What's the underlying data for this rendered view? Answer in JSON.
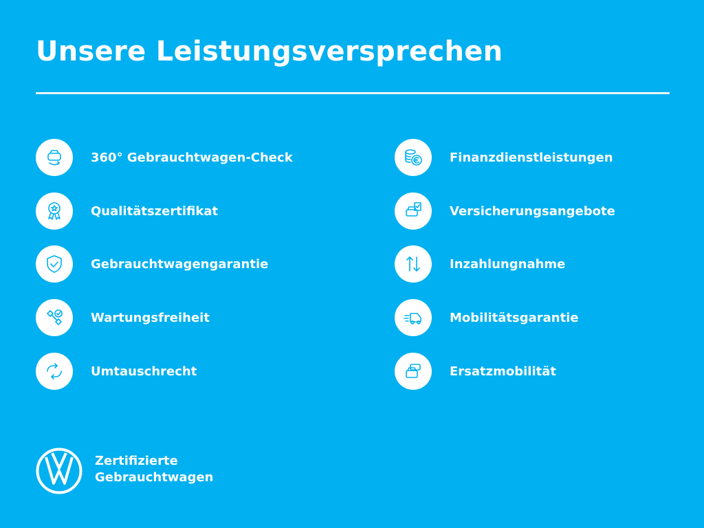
{
  "title": "Unsere Leistungsversprechen",
  "left_items": [
    {
      "label": "360° Gebrauchtwagen-Check",
      "icon": "car-check-icon"
    },
    {
      "label": "Qualitätszertifikat",
      "icon": "award-icon"
    },
    {
      "label": "Gebrauchtwagengarantie",
      "icon": "shield-check-icon"
    },
    {
      "label": "Wartungsfreiheit",
      "icon": "wrench-check-icon"
    },
    {
      "label": "Umtauschrecht",
      "icon": "exchange-icon"
    }
  ],
  "right_items": [
    {
      "label": "Finanzdienstleistungen",
      "icon": "coins-euro-icon"
    },
    {
      "label": "Versicherungsangebote",
      "icon": "car-document-icon"
    },
    {
      "label": "Inzahlungnahme",
      "icon": "arrows-up-down-icon"
    },
    {
      "label": "Mobilitätsgarantie",
      "icon": "tow-truck-icon"
    },
    {
      "label": "Ersatzmobilität",
      "icon": "cars-icon"
    }
  ],
  "brand": {
    "line1": "Zertifizierte",
    "line2": "Gebrauchtwagen",
    "logo": "vw-logo"
  },
  "colors": {
    "background": "#00b0f0",
    "icon": "#00b0f0",
    "text": "#ffffff"
  }
}
